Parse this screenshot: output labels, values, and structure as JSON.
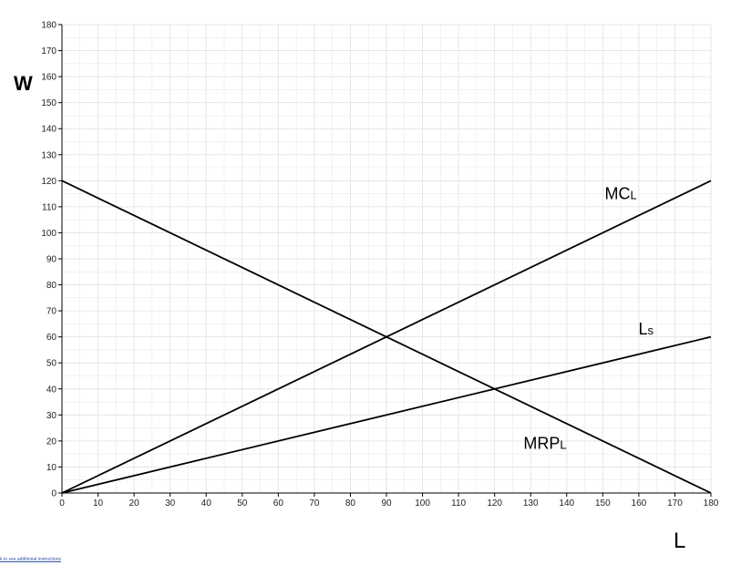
{
  "chart_data": {
    "type": "line",
    "xlabel": "L",
    "ylabel": "W",
    "xlim": [
      0,
      180
    ],
    "ylim": [
      0,
      180
    ],
    "x_ticks": [
      0,
      10,
      20,
      30,
      40,
      50,
      60,
      70,
      80,
      90,
      100,
      110,
      120,
      130,
      140,
      150,
      160,
      170,
      180
    ],
    "y_ticks": [
      0,
      10,
      20,
      30,
      40,
      50,
      60,
      70,
      80,
      90,
      100,
      110,
      120,
      130,
      140,
      150,
      160,
      170,
      180
    ],
    "grid": true,
    "line_color": "#000000",
    "grid_color": "#e6e6e6",
    "series": [
      {
        "name": "MCL",
        "main": "MC",
        "sub": "L",
        "x": [
          0,
          180
        ],
        "y": [
          0,
          120
        ],
        "label_at": [
          155,
          113
        ]
      },
      {
        "name": "Ls",
        "main": "L",
        "sub": "s",
        "x": [
          0,
          180
        ],
        "y": [
          0,
          60
        ],
        "label_at": [
          162,
          61
        ]
      },
      {
        "name": "MRPL",
        "main": "MRP",
        "sub": "L",
        "x": [
          0,
          180
        ],
        "y": [
          120,
          0
        ],
        "label_at": [
          134,
          17
        ]
      }
    ]
  },
  "footer": {
    "link_text": "k to see additional instructions"
  }
}
